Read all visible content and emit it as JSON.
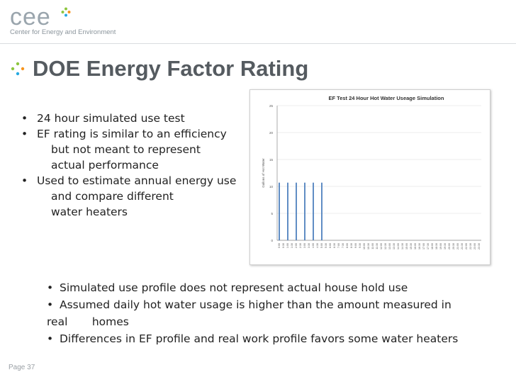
{
  "logo": {
    "wordmark": "cee",
    "tagline": "Center for Energy and Environment"
  },
  "slide": {
    "title": "DOE Energy Factor Rating",
    "bullets_left": [
      {
        "lines": [
          "24 hour simulated use test"
        ]
      },
      {
        "lines": [
          "EF rating is similar to an efficiency",
          "but not meant to represent",
          "actual performance"
        ]
      },
      {
        "lines": [
          "Used to estimate annual energy use",
          "and compare different",
          "water heaters"
        ]
      }
    ],
    "bullets_bottom": [
      {
        "lines": [
          "Simulated use profile does not represent actual house hold use"
        ]
      },
      {
        "lines": [
          "Assumed daily hot water usage is higher than the amount measured in",
          "real       homes"
        ]
      },
      {
        "lines": [
          "Differences in EF profile and real work profile favors some water heaters"
        ]
      }
    ],
    "page_label": "Page 37"
  },
  "chart_data": {
    "type": "bar",
    "title": "EF Test 24 Hour Hot Water Useage Simulation",
    "ylabel": "Gallons of Hot Water",
    "xlabel": "",
    "ylim": [
      0,
      25
    ],
    "yticks": [
      "0",
      "5",
      "10",
      "15",
      "20",
      "25"
    ],
    "categories": [
      "0:00",
      "0:30",
      "1:00",
      "1:30",
      "2:00",
      "2:30",
      "3:00",
      "3:30",
      "4:00",
      "4:30",
      "5:00",
      "5:30",
      "6:00",
      "6:30",
      "7:00",
      "7:30",
      "8:00",
      "8:30",
      "9:00",
      "9:30",
      "10:00",
      "10:30",
      "11:00",
      "11:30",
      "12:00",
      "12:30",
      "13:00",
      "13:30",
      "14:00",
      "14:30",
      "15:00",
      "15:30",
      "16:00",
      "16:30",
      "17:00",
      "17:30",
      "18:00",
      "18:30",
      "19:00",
      "19:30",
      "20:00",
      "20:30",
      "21:00",
      "21:30",
      "22:00",
      "22:30",
      "23:00",
      "23:30"
    ],
    "values": [
      10.7,
      0,
      10.7,
      0,
      10.7,
      0,
      10.7,
      0,
      10.7,
      0,
      10.7,
      0,
      0,
      0,
      0,
      0,
      0,
      0,
      0,
      0,
      0,
      0,
      0,
      0,
      0,
      0,
      0,
      0,
      0,
      0,
      0,
      0,
      0,
      0,
      0,
      0,
      0,
      0,
      0,
      0,
      0,
      0,
      0,
      0,
      0,
      0,
      0,
      0
    ],
    "bar_color": "#4f81bd",
    "grid": true
  }
}
